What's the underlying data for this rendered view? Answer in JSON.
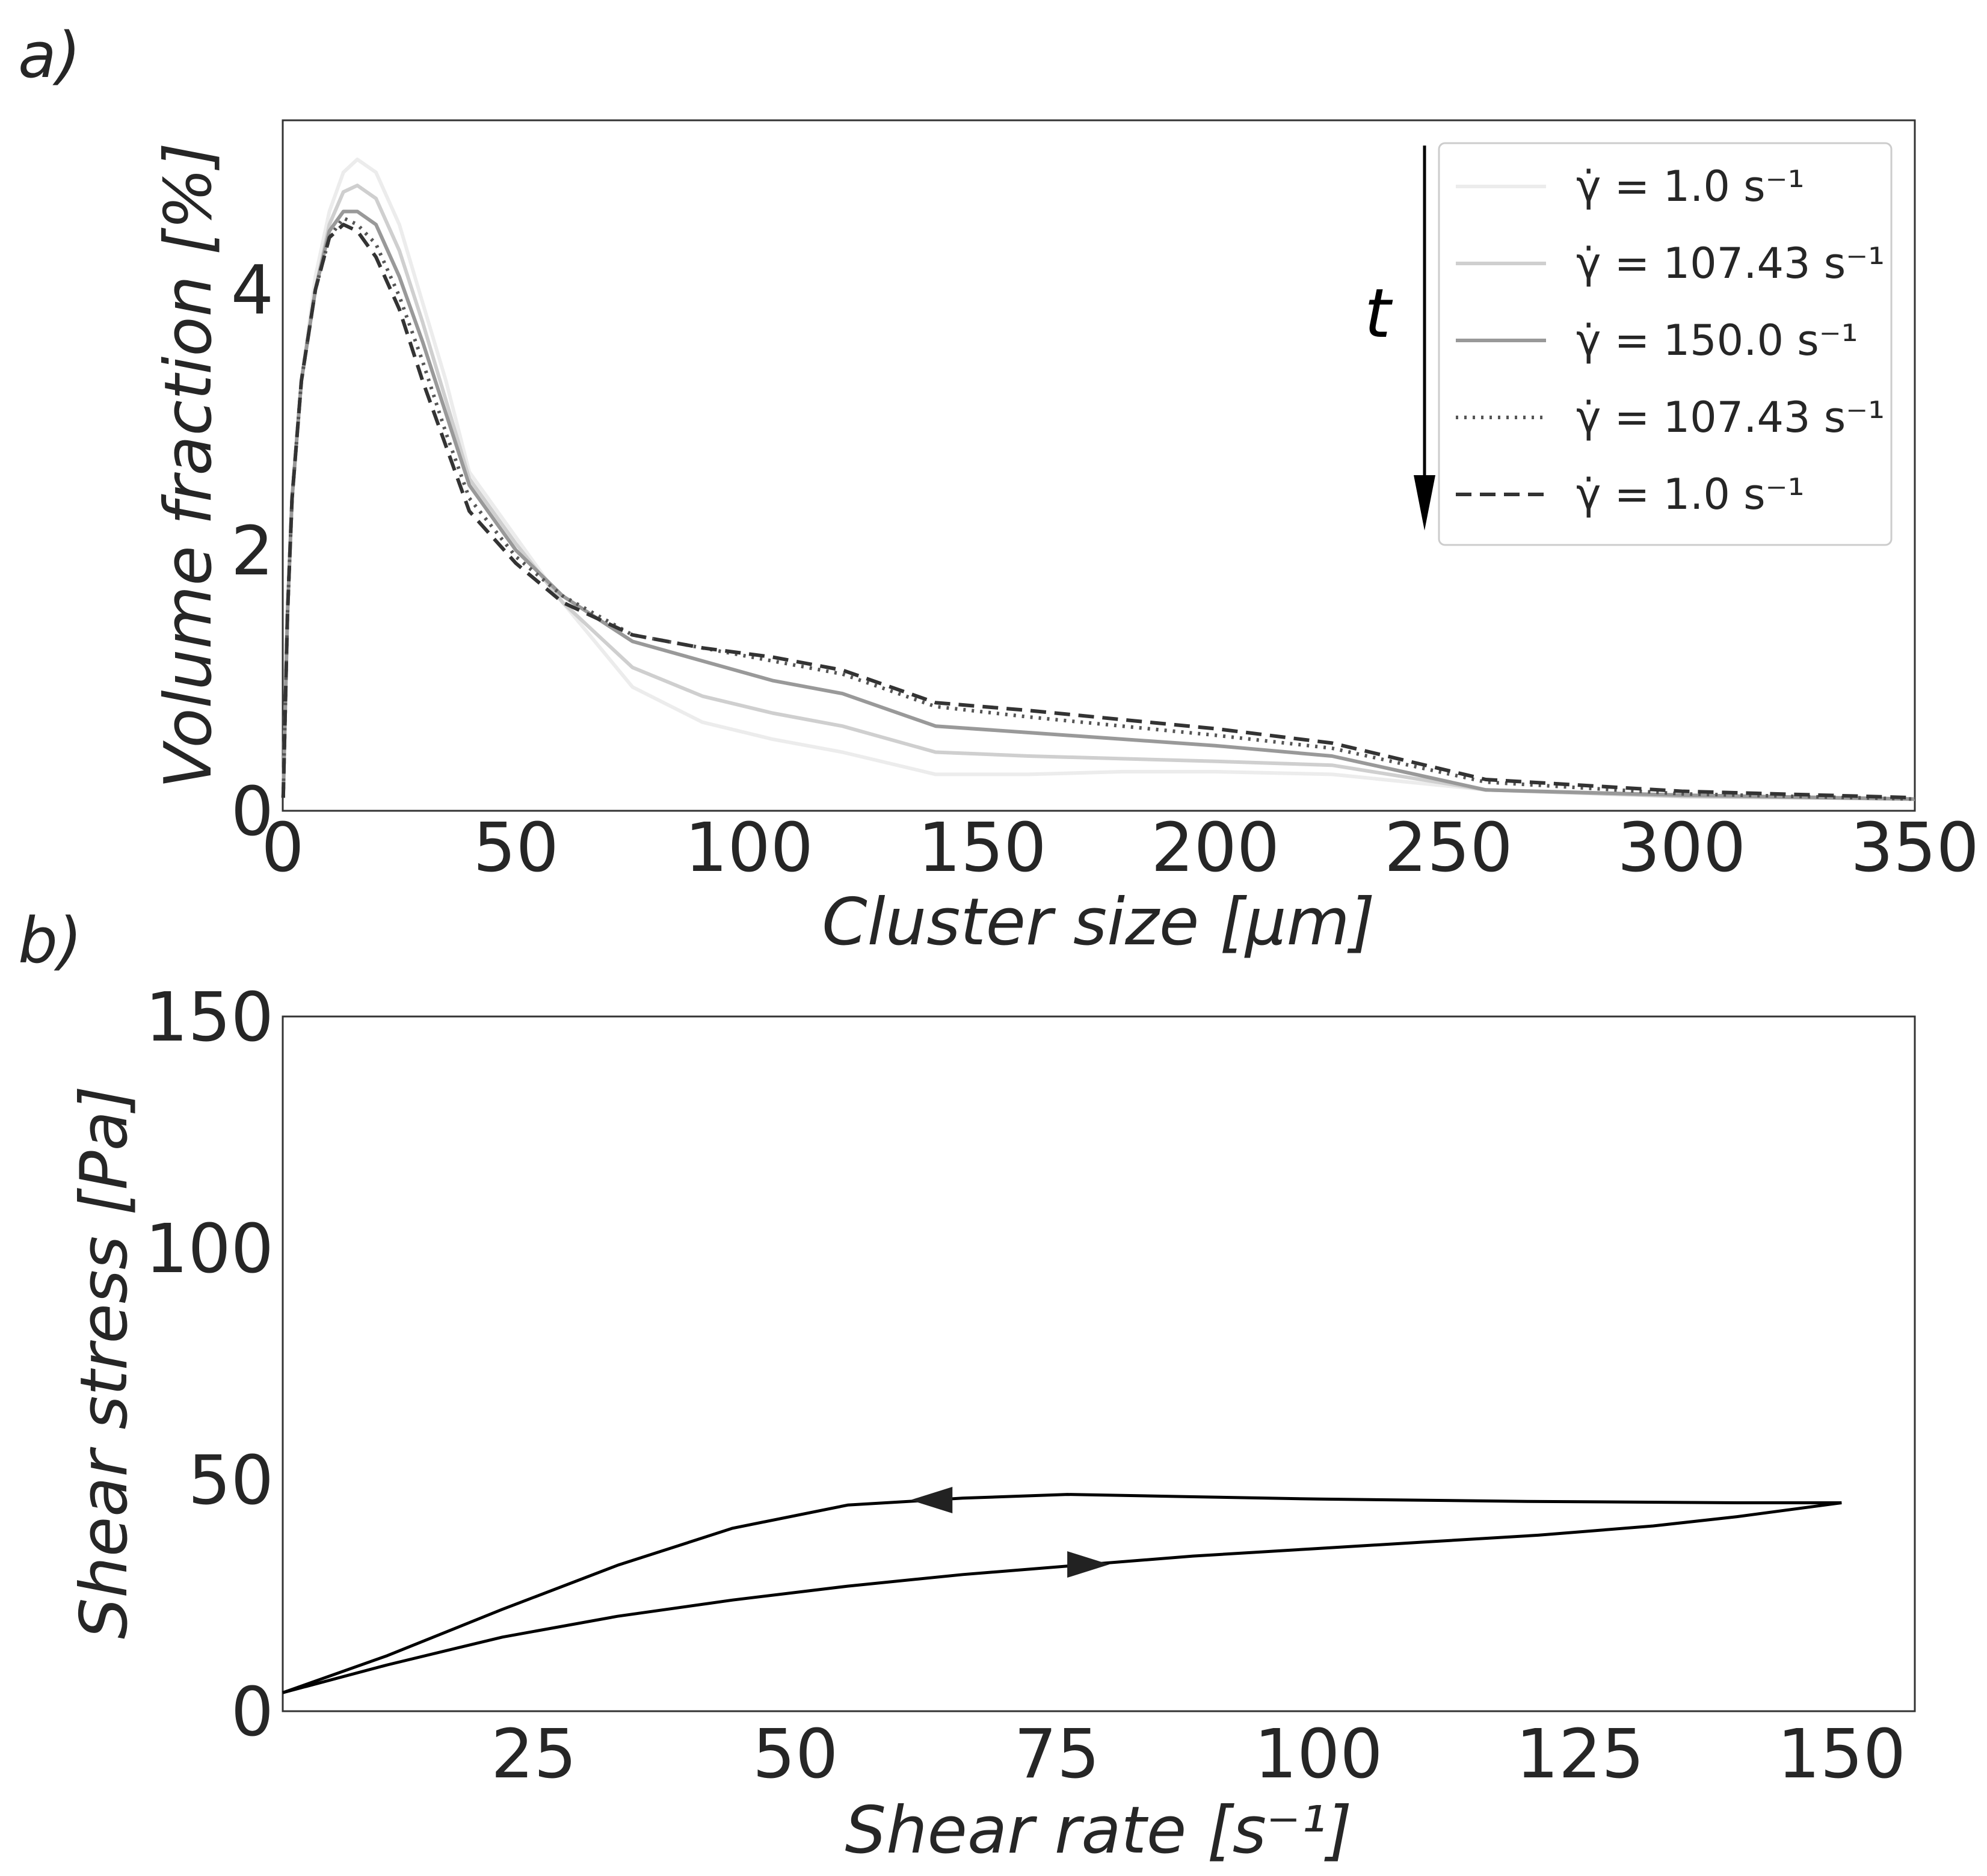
{
  "chart_data": [
    {
      "type": "line",
      "panel_label": "a)",
      "xlabel": "Cluster size [µm]",
      "ylabel": "Volume fraction [%]",
      "xlim": [
        0,
        350
      ],
      "ylim": [
        0,
        5.3
      ],
      "xticks": [
        "0",
        "50",
        "100",
        "150",
        "200",
        "250",
        "300",
        "350"
      ],
      "yticks": [
        "0",
        "2",
        "4"
      ],
      "x": [
        0.1,
        1,
        2,
        4,
        7,
        10,
        13,
        16,
        20,
        25,
        30,
        35,
        40,
        50,
        60,
        75,
        90,
        105,
        120,
        140,
        160,
        180,
        200,
        225,
        258,
        300,
        350
      ],
      "legend_arrow_label": "t",
      "series": [
        {
          "name": "γ̇ = 1.0 s⁻¹",
          "color": "#ececec",
          "dash": "solid",
          "values": [
            0.1,
            1.5,
            2.4,
            3.3,
            4.1,
            4.6,
            4.9,
            5.0,
            4.9,
            4.5,
            3.9,
            3.3,
            2.6,
            2.1,
            1.6,
            0.95,
            0.68,
            0.55,
            0.45,
            0.28,
            0.28,
            0.3,
            0.3,
            0.28,
            0.16,
            0.11,
            0.09
          ]
        },
        {
          "name": "γ̇ = 107.43 s⁻¹",
          "color": "#cfcfcf",
          "dash": "solid",
          "values": [
            0.1,
            1.5,
            2.4,
            3.3,
            4.0,
            4.5,
            4.75,
            4.8,
            4.7,
            4.3,
            3.75,
            3.15,
            2.55,
            2.05,
            1.6,
            1.1,
            0.88,
            0.75,
            0.65,
            0.45,
            0.42,
            0.4,
            0.38,
            0.35,
            0.16,
            0.11,
            0.09
          ]
        },
        {
          "name": "γ̇ = 150.0 s⁻¹",
          "color": "#999999",
          "dash": "solid",
          "values": [
            0.1,
            1.5,
            2.4,
            3.3,
            4.0,
            4.45,
            4.6,
            4.6,
            4.5,
            4.1,
            3.6,
            3.05,
            2.5,
            2.0,
            1.65,
            1.3,
            1.15,
            1.0,
            0.9,
            0.65,
            0.6,
            0.55,
            0.5,
            0.42,
            0.16,
            0.12,
            0.09
          ]
        },
        {
          "name": "γ̇ = 107.43 s⁻¹",
          "color": "#555555",
          "dash": "dotted",
          "values": [
            0.1,
            1.5,
            2.4,
            3.3,
            4.0,
            4.4,
            4.55,
            4.5,
            4.35,
            3.95,
            3.45,
            2.9,
            2.4,
            1.95,
            1.65,
            1.35,
            1.25,
            1.15,
            1.05,
            0.8,
            0.72,
            0.65,
            0.58,
            0.48,
            0.22,
            0.13,
            0.09
          ]
        },
        {
          "name": "γ̇ = 1.0 s⁻¹",
          "color": "#333333",
          "dash": "dashed",
          "values": [
            0.1,
            1.5,
            2.4,
            3.3,
            4.0,
            4.4,
            4.5,
            4.45,
            4.25,
            3.85,
            3.3,
            2.8,
            2.3,
            1.9,
            1.6,
            1.35,
            1.25,
            1.18,
            1.08,
            0.83,
            0.77,
            0.7,
            0.63,
            0.52,
            0.24,
            0.15,
            0.1
          ]
        }
      ]
    },
    {
      "type": "line",
      "panel_label": "b)",
      "xlabel": "Shear rate [s⁻¹]",
      "ylabel": "Shear stress [Pa]",
      "xlim": [
        1,
        157
      ],
      "ylim": [
        0,
        150
      ],
      "xticks": [
        "25",
        "50",
        "75",
        "100",
        "125",
        "150"
      ],
      "yticks": [
        "0",
        "50",
        "100",
        "150"
      ],
      "series": [
        {
          "name": "ramp up",
          "color": "#000000",
          "dash": "solid",
          "x": [
            1,
            11,
            22,
            33,
            44,
            55,
            66,
            77,
            88,
            99,
            110,
            121,
            132,
            140,
            150
          ],
          "values": [
            4,
            10,
            16,
            20.5,
            24,
            27,
            29.5,
            31.5,
            33.5,
            35,
            36.5,
            38,
            40,
            42,
            45
          ]
        },
        {
          "name": "ramp down",
          "color": "#000000",
          "dash": "solid",
          "x": [
            150,
            140,
            120,
            100,
            88,
            76,
            66,
            55,
            44,
            33,
            22,
            11,
            1
          ],
          "values": [
            45,
            45,
            45.3,
            45.8,
            46.3,
            46.8,
            46,
            44.5,
            39.5,
            31.5,
            22,
            12,
            4
          ]
        }
      ]
    }
  ]
}
